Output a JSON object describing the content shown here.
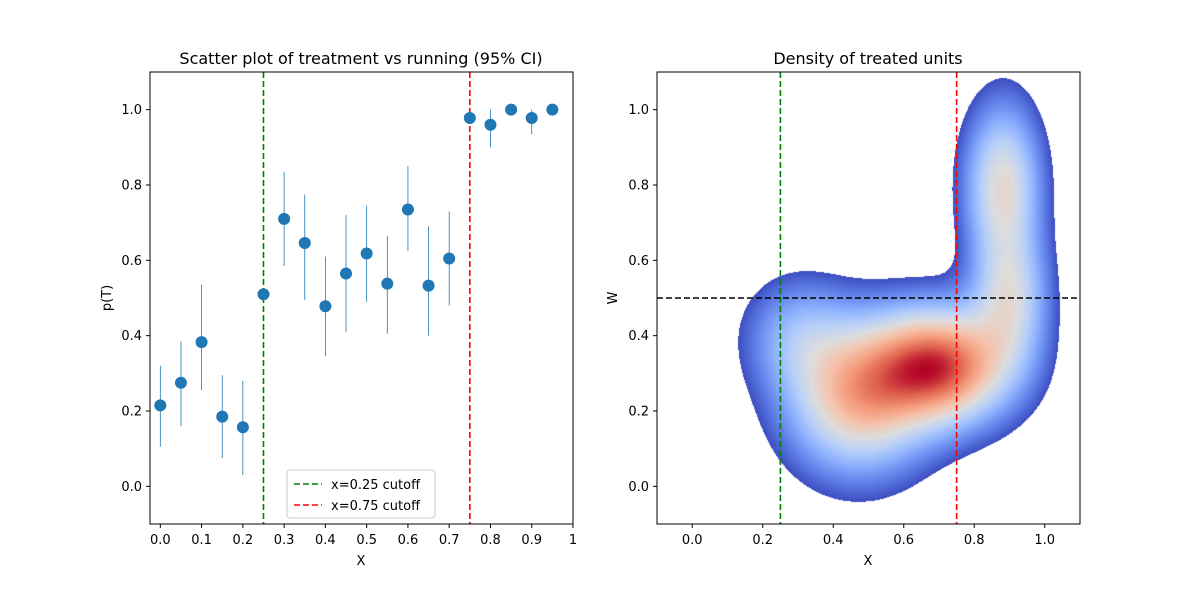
{
  "chart_data": [
    {
      "type": "scatter",
      "title": "Scatter plot of treatment vs running (95% CI)",
      "xlabel": "X",
      "ylabel": "p(T)",
      "xlim": [
        -0.025,
        1.0
      ],
      "ylim": [
        -0.1,
        1.1
      ],
      "xticks": [
        0.0,
        0.1,
        0.2,
        0.3,
        0.4,
        0.5,
        0.6,
        0.7,
        0.8,
        0.9,
        1.0
      ],
      "xtick_labels": [
        "0.0",
        "0.1",
        "0.2",
        "0.3",
        "0.4",
        "0.5",
        "0.6",
        "0.7",
        "0.8",
        "0.9",
        "1"
      ],
      "yticks": [
        0.0,
        0.2,
        0.4,
        0.6,
        0.8,
        1.0
      ],
      "ytick_labels": [
        "0.0",
        "0.2",
        "0.4",
        "0.6",
        "0.8",
        "1.0"
      ],
      "grid": false,
      "point_color": "#1f77b4",
      "points": [
        {
          "x": 0.0,
          "y": 0.215,
          "lo": 0.105,
          "hi": 0.32
        },
        {
          "x": 0.05,
          "y": 0.275,
          "lo": 0.16,
          "hi": 0.385
        },
        {
          "x": 0.1,
          "y": 0.383,
          "lo": 0.255,
          "hi": 0.535
        },
        {
          "x": 0.15,
          "y": 0.185,
          "lo": 0.075,
          "hi": 0.295
        },
        {
          "x": 0.2,
          "y": 0.157,
          "lo": 0.03,
          "hi": 0.28
        },
        {
          "x": 0.25,
          "y": 0.51,
          "lo": 0.51,
          "hi": 0.51
        },
        {
          "x": 0.3,
          "y": 0.71,
          "lo": 0.585,
          "hi": 0.835
        },
        {
          "x": 0.35,
          "y": 0.646,
          "lo": 0.495,
          "hi": 0.775
        },
        {
          "x": 0.4,
          "y": 0.478,
          "lo": 0.345,
          "hi": 0.61
        },
        {
          "x": 0.45,
          "y": 0.565,
          "lo": 0.41,
          "hi": 0.72
        },
        {
          "x": 0.5,
          "y": 0.618,
          "lo": 0.49,
          "hi": 0.745
        },
        {
          "x": 0.55,
          "y": 0.538,
          "lo": 0.405,
          "hi": 0.665
        },
        {
          "x": 0.6,
          "y": 0.735,
          "lo": 0.625,
          "hi": 0.85
        },
        {
          "x": 0.65,
          "y": 0.533,
          "lo": 0.4,
          "hi": 0.69
        },
        {
          "x": 0.7,
          "y": 0.605,
          "lo": 0.48,
          "hi": 0.73
        },
        {
          "x": 0.75,
          "y": 0.978,
          "lo": 0.978,
          "hi": 0.978
        },
        {
          "x": 0.8,
          "y": 0.96,
          "lo": 0.9,
          "hi": 1.0
        },
        {
          "x": 0.85,
          "y": 1.0,
          "lo": 1.0,
          "hi": 1.0
        },
        {
          "x": 0.9,
          "y": 0.978,
          "lo": 0.935,
          "hi": 1.0
        },
        {
          "x": 0.95,
          "y": 1.0,
          "lo": 1.0,
          "hi": 1.0
        }
      ],
      "vlines": [
        {
          "x": 0.25,
          "color": "#008000",
          "label": "x=0.25 cutoff"
        },
        {
          "x": 0.75,
          "color": "#ff0000",
          "label": "x=0.75 cutoff"
        }
      ],
      "legend_position": "bottom-center"
    },
    {
      "type": "heatmap",
      "title": "Density of treated units",
      "xlabel": "X",
      "ylabel": "W",
      "xlim": [
        -0.1,
        1.1
      ],
      "ylim": [
        -0.1,
        1.1
      ],
      "xticks": [
        0.0,
        0.2,
        0.4,
        0.6,
        0.8,
        1.0
      ],
      "xtick_labels": [
        "0.0",
        "0.2",
        "0.4",
        "0.6",
        "0.8",
        "1.0"
      ],
      "yticks": [
        0.0,
        0.2,
        0.4,
        0.6,
        0.8,
        1.0
      ],
      "ytick_labels": [
        "0.0",
        "0.2",
        "0.4",
        "0.6",
        "0.8",
        "1.0"
      ],
      "colormap": "coolwarm",
      "density_components": [
        {
          "x": 0.7,
          "y": 0.32,
          "sx": 0.13,
          "sy": 0.1,
          "w": 1.0
        },
        {
          "x": 0.47,
          "y": 0.24,
          "sx": 0.13,
          "sy": 0.13,
          "w": 0.7
        },
        {
          "x": 0.88,
          "y": 0.8,
          "sx": 0.07,
          "sy": 0.14,
          "w": 0.55
        },
        {
          "x": 0.9,
          "y": 0.5,
          "sx": 0.07,
          "sy": 0.12,
          "w": 0.45
        },
        {
          "x": 0.3,
          "y": 0.4,
          "sx": 0.1,
          "sy": 0.1,
          "w": 0.25
        }
      ],
      "vlines": [
        {
          "x": 0.25,
          "color": "#008000"
        },
        {
          "x": 0.75,
          "color": "#ff0000"
        }
      ],
      "hlines": [
        {
          "y": 0.5,
          "color": "#000000"
        }
      ]
    }
  ]
}
